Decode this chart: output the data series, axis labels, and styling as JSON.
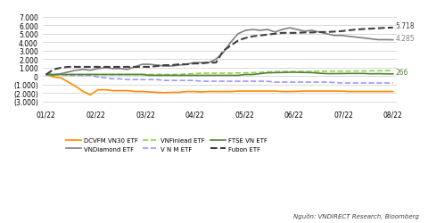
{
  "x_labels": [
    "01/22",
    "02/22",
    "03/22",
    "04/22",
    "05/22",
    "06/22",
    "07/22",
    "08/22"
  ],
  "x_positions": [
    0,
    1,
    2,
    3,
    4,
    5,
    6,
    7
  ],
  "series": {
    "DCVFM VN30 ETF": {
      "color": "#FF8C00",
      "linestyle": "solid",
      "linewidth": 1.2,
      "values": [
        200,
        -100,
        -200,
        -700,
        -1200,
        -1800,
        -2200,
        -1600,
        -1600,
        -1700,
        -1700,
        -1700,
        -1800,
        -1800,
        -1850,
        -1900,
        -1950,
        -1900,
        -1900,
        -1800,
        -1800,
        -1850,
        -1800,
        -1800,
        -1800,
        -1800,
        -1750,
        -1750,
        -1750,
        -1750,
        -1750,
        -1750,
        -1800,
        -1800,
        -1780,
        -1750,
        -1750,
        -1750,
        -1750,
        -1750,
        -1750,
        -1800,
        -1800,
        -1800,
        -1800,
        -1800,
        -1800,
        -1800
      ]
    },
    "VNDiamond ETF": {
      "color": "#808080",
      "linestyle": "solid",
      "linewidth": 1.2,
      "values": [
        200,
        100,
        300,
        500,
        700,
        800,
        700,
        900,
        1000,
        900,
        900,
        800,
        1100,
        1400,
        1400,
        1300,
        1200,
        1200,
        1300,
        1400,
        1600,
        1600,
        1600,
        2000,
        2800,
        4000,
        5000,
        5400,
        5500,
        5400,
        5500,
        5200,
        5500,
        5700,
        5500,
        5300,
        5400,
        5200,
        5000,
        4800,
        4800,
        4700,
        4600,
        4500,
        4400,
        4300,
        4300,
        4285
      ]
    },
    "VNFinlead ETF": {
      "color": "#92D050",
      "linestyle": "dashed",
      "linewidth": 1.2,
      "values": [
        200,
        200,
        200,
        200,
        200,
        200,
        200,
        200,
        200,
        200,
        200,
        200,
        200,
        200,
        200,
        200,
        200,
        200,
        200,
        250,
        300,
        350,
        350,
        350,
        350,
        350,
        380,
        400,
        420,
        450,
        500,
        520,
        540,
        550,
        560,
        560,
        570,
        580,
        590,
        600,
        600,
        600,
        610,
        620,
        630,
        640,
        650,
        660
      ]
    },
    "V N M ETF": {
      "color": "#9999FF",
      "linestyle": "dashed",
      "linewidth": 1.2,
      "values": [
        200,
        200,
        200,
        100,
        100,
        100,
        100,
        -100,
        -200,
        -300,
        -300,
        -400,
        -400,
        -400,
        -400,
        -400,
        -500,
        -500,
        -500,
        -500,
        -500,
        -600,
        -600,
        -600,
        -600,
        -600,
        -600,
        -600,
        -600,
        -600,
        -600,
        -700,
        -700,
        -700,
        -700,
        -700,
        -700,
        -700,
        -700,
        -750,
        -800,
        -800,
        -800,
        -800,
        -800,
        -800,
        -800,
        -800
      ]
    },
    "FTSE VN ETF": {
      "color": "#548235",
      "linestyle": "solid",
      "linewidth": 1.2,
      "values": [
        200,
        200,
        200,
        200,
        200,
        200,
        200,
        200,
        200,
        200,
        200,
        200,
        200,
        200,
        100,
        100,
        100,
        100,
        100,
        100,
        100,
        100,
        100,
        100,
        100,
        100,
        100,
        200,
        200,
        300,
        400,
        420,
        440,
        460,
        460,
        440,
        420,
        350,
        300,
        300,
        310,
        320,
        320,
        320,
        280,
        300,
        280,
        266
      ]
    },
    "Fubon ETF": {
      "color": "#404040",
      "linestyle": "dashed",
      "linewidth": 1.5,
      "values": [
        200,
        800,
        1000,
        1100,
        1100,
        1100,
        1100,
        1100,
        1100,
        1100,
        1100,
        1100,
        1100,
        1100,
        1100,
        1200,
        1300,
        1300,
        1400,
        1400,
        1500,
        1500,
        1600,
        1600,
        3000,
        3600,
        4200,
        4500,
        4700,
        4800,
        4900,
        5000,
        5100,
        5100,
        5100,
        5150,
        5150,
        5200,
        5200,
        5250,
        5300,
        5400,
        5500,
        5550,
        5600,
        5650,
        5700,
        5718
      ]
    }
  },
  "x_tick_count": 48,
  "yticks": [
    -3000,
    -2000,
    -1000,
    0,
    1000,
    2000,
    3000,
    4000,
    5000,
    6000,
    7000
  ],
  "ylim": [
    -3500,
    7500
  ],
  "annotation_5718": "5.718",
  "annotation_4285": "4.285",
  "annotation_266": "266",
  "source_text": "Nguồn: VNDIRECT Research, Bloomberg",
  "bg_color": "#FFFFFF",
  "grid_color": "#CCCCCC"
}
